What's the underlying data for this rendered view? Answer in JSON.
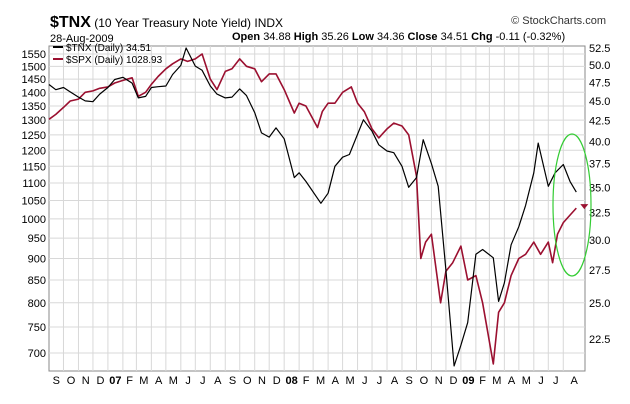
{
  "header": {
    "symbol": "$TNX",
    "name": "(10 Year Treasury Note Yield)",
    "exchange": "INDX",
    "date": "28-Aug-2009",
    "open_label": "Open",
    "open": "34.88",
    "high_label": "High",
    "high": "35.26",
    "low_label": "Low",
    "low": "34.36",
    "close_label": "Close",
    "close": "34.51",
    "chg_label": "Chg",
    "chg": "-0.11 (-0.32%)",
    "brand": "© StockCharts.com"
  },
  "legend": [
    {
      "label": "$TNX (Daily) 34.51",
      "color": "#000000"
    },
    {
      "label": "$SPX (Daily) 1028.93",
      "color": "#9b1030"
    }
  ],
  "colors": {
    "spx": "#9b1030",
    "tnx": "#000000",
    "annotation": "#33cc33",
    "grid": "#d8d8d8",
    "marker": "#9b1030"
  },
  "chart_data": {
    "type": "line",
    "x_ticks": [
      "S",
      "O",
      "N",
      "D",
      "07",
      "F",
      "M",
      "A",
      "M",
      "J",
      "J",
      "A",
      "S",
      "O",
      "N",
      "D",
      "08",
      "F",
      "M",
      "A",
      "M",
      "J",
      "J",
      "A",
      "S",
      "O",
      "N",
      "D",
      "09",
      "F",
      "M",
      "A",
      "M",
      "J",
      "J",
      "A"
    ],
    "left_axis": {
      "ticks": [
        "1550",
        "1500",
        "1450",
        "1400",
        "1350",
        "1300",
        "1250",
        "1200",
        "1150",
        "1100",
        "1050",
        "1000",
        "950",
        "900",
        "850",
        "800",
        "750",
        "700"
      ],
      "log": true
    },
    "right_axis": {
      "ticks": [
        "52.5",
        "50.0",
        "47.5",
        "45.0",
        "42.5",
        "40.0",
        "37.5",
        "35.0",
        "32.5",
        "30.0",
        "27.5",
        "25.0",
        "22.5"
      ],
      "log": true
    },
    "grid": true,
    "series": [
      {
        "name": "$SPX (Daily) 1028.93",
        "axis": "left",
        "x": [
          "2006-09-01",
          "2006-09-15",
          "2006-10-01",
          "2006-10-15",
          "2006-11-01",
          "2006-11-15",
          "2006-12-01",
          "2006-12-15",
          "2007-01-01",
          "2007-01-15",
          "2007-02-01",
          "2007-02-20",
          "2007-03-05",
          "2007-03-20",
          "2007-04-01",
          "2007-04-15",
          "2007-05-01",
          "2007-05-15",
          "2007-06-01",
          "2007-06-15",
          "2007-07-01",
          "2007-07-15",
          "2007-08-01",
          "2007-08-15",
          "2007-09-01",
          "2007-09-15",
          "2007-10-01",
          "2007-10-15",
          "2007-11-01",
          "2007-11-15",
          "2007-12-01",
          "2007-12-15",
          "2008-01-01",
          "2008-01-22",
          "2008-02-01",
          "2008-02-15",
          "2008-03-10",
          "2008-03-20",
          "2008-04-01",
          "2008-04-15",
          "2008-05-01",
          "2008-05-19",
          "2008-06-01",
          "2008-06-15",
          "2008-07-01",
          "2008-07-15",
          "2008-08-01",
          "2008-08-15",
          "2008-09-01",
          "2008-09-15",
          "2008-10-01",
          "2008-10-10",
          "2008-10-20",
          "2008-11-01",
          "2008-11-20",
          "2008-12-01",
          "2008-12-15",
          "2009-01-01",
          "2009-01-15",
          "2009-02-01",
          "2009-02-15",
          "2009-03-09",
          "2009-03-20",
          "2009-04-01",
          "2009-04-15",
          "2009-05-01",
          "2009-05-15",
          "2009-06-01",
          "2009-06-15",
          "2009-07-01",
          "2009-07-10",
          "2009-07-20",
          "2009-08-01",
          "2009-08-15",
          "2009-08-28"
        ],
        "y": [
          1303,
          1320,
          1345,
          1368,
          1375,
          1400,
          1405,
          1415,
          1420,
          1435,
          1445,
          1455,
          1385,
          1400,
          1430,
          1460,
          1490,
          1510,
          1530,
          1520,
          1530,
          1550,
          1450,
          1410,
          1480,
          1490,
          1530,
          1500,
          1490,
          1440,
          1470,
          1470,
          1410,
          1325,
          1360,
          1350,
          1275,
          1330,
          1360,
          1360,
          1400,
          1420,
          1360,
          1330,
          1270,
          1240,
          1270,
          1290,
          1280,
          1250,
          1120,
          900,
          940,
          960,
          800,
          870,
          890,
          930,
          850,
          860,
          800,
          680,
          780,
          800,
          860,
          900,
          910,
          940,
          910,
          940,
          890,
          960,
          990,
          1010,
          1028.93
        ]
      },
      {
        "name": "$TNX (Daily) 34.51",
        "axis": "right",
        "x": [
          "2006-09-01",
          "2006-09-15",
          "2006-10-01",
          "2006-10-15",
          "2006-11-01",
          "2006-11-15",
          "2006-12-01",
          "2006-12-15",
          "2007-01-01",
          "2007-01-15",
          "2007-02-01",
          "2007-02-20",
          "2007-03-05",
          "2007-03-20",
          "2007-04-01",
          "2007-04-15",
          "2007-05-01",
          "2007-05-15",
          "2007-06-01",
          "2007-06-12",
          "2007-07-01",
          "2007-07-15",
          "2007-08-01",
          "2007-08-15",
          "2007-09-01",
          "2007-09-15",
          "2007-10-01",
          "2007-10-15",
          "2007-11-01",
          "2007-11-15",
          "2007-12-01",
          "2007-12-15",
          "2008-01-01",
          "2008-01-22",
          "2008-02-01",
          "2008-02-15",
          "2008-03-17",
          "2008-04-01",
          "2008-04-15",
          "2008-05-01",
          "2008-05-15",
          "2008-06-13",
          "2008-07-01",
          "2008-07-15",
          "2008-08-01",
          "2008-08-15",
          "2008-09-01",
          "2008-09-15",
          "2008-10-01",
          "2008-10-15",
          "2008-11-01",
          "2008-11-15",
          "2008-12-01",
          "2008-12-18",
          "2009-01-01",
          "2009-01-15",
          "2009-02-01",
          "2009-02-15",
          "2009-03-09",
          "2009-03-20",
          "2009-04-01",
          "2009-04-15",
          "2009-05-01",
          "2009-05-15",
          "2009-06-01",
          "2009-06-10",
          "2009-07-01",
          "2009-07-15",
          "2009-08-01",
          "2009-08-15",
          "2009-08-28"
        ],
        "y": [
          47.2,
          46.5,
          46.8,
          46.2,
          45.5,
          45.0,
          44.9,
          45.9,
          46.8,
          47.9,
          48.2,
          47.4,
          45.4,
          45.6,
          46.8,
          46.9,
          47.0,
          48.6,
          49.9,
          52.5,
          49.8,
          49.2,
          47.0,
          45.9,
          45.4,
          45.5,
          46.6,
          45.7,
          43.5,
          41.0,
          40.5,
          41.6,
          40.3,
          36.0,
          36.5,
          35.6,
          33.4,
          34.4,
          37.2,
          38.2,
          38.5,
          42.6,
          41.2,
          39.6,
          38.9,
          38.7,
          37.2,
          35.0,
          36.0,
          40.2,
          37.5,
          35.1,
          27.5,
          20.8,
          22.1,
          23.6,
          28.8,
          29.2,
          28.5,
          25.1,
          26.5,
          29.6,
          31.2,
          33.2,
          36.5,
          39.8,
          35.1,
          36.5,
          37.4,
          35.6,
          34.51
        ]
      }
    ],
    "annotation": "ellipse"
  }
}
